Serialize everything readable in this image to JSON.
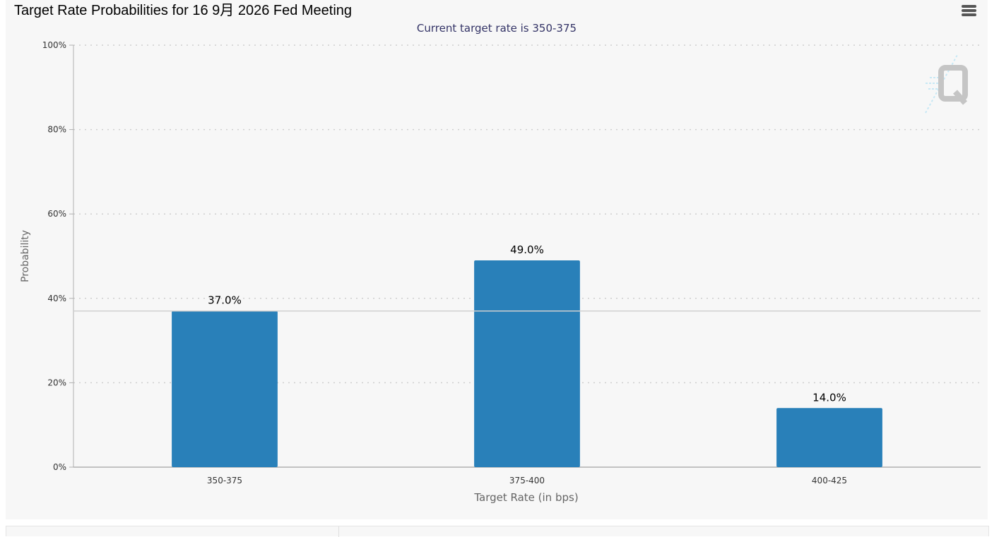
{
  "header": {
    "title": "Target Rate Probabilities for 16 9月 2026 Fed Meeting",
    "menu_icon": "hamburger-menu-icon"
  },
  "colors": {
    "bar": "#2980b9",
    "panel_bg": "#f7f7f7",
    "subtitle": "#333366",
    "axis_text": "#333333"
  },
  "chart_data": {
    "type": "bar",
    "title": "",
    "subtitle": "Current target rate is 350-375",
    "xlabel": "Target Rate (in bps)",
    "ylabel": "Probability",
    "categories": [
      "350-375",
      "375-400",
      "400-425"
    ],
    "values": [
      37.0,
      49.0,
      14.0
    ],
    "data_labels": [
      "37.0%",
      "49.0%",
      "14.0%"
    ],
    "ylim": [
      0,
      100
    ],
    "yticks": [
      0,
      20,
      40,
      60,
      80,
      100
    ],
    "ytick_labels": [
      "0%",
      "20%",
      "40%",
      "60%",
      "80%",
      "100%"
    ],
    "grid": "dotted horizontal",
    "reference_line": 37.0,
    "watermark_icon": "quikstrike-q-logo-icon"
  }
}
